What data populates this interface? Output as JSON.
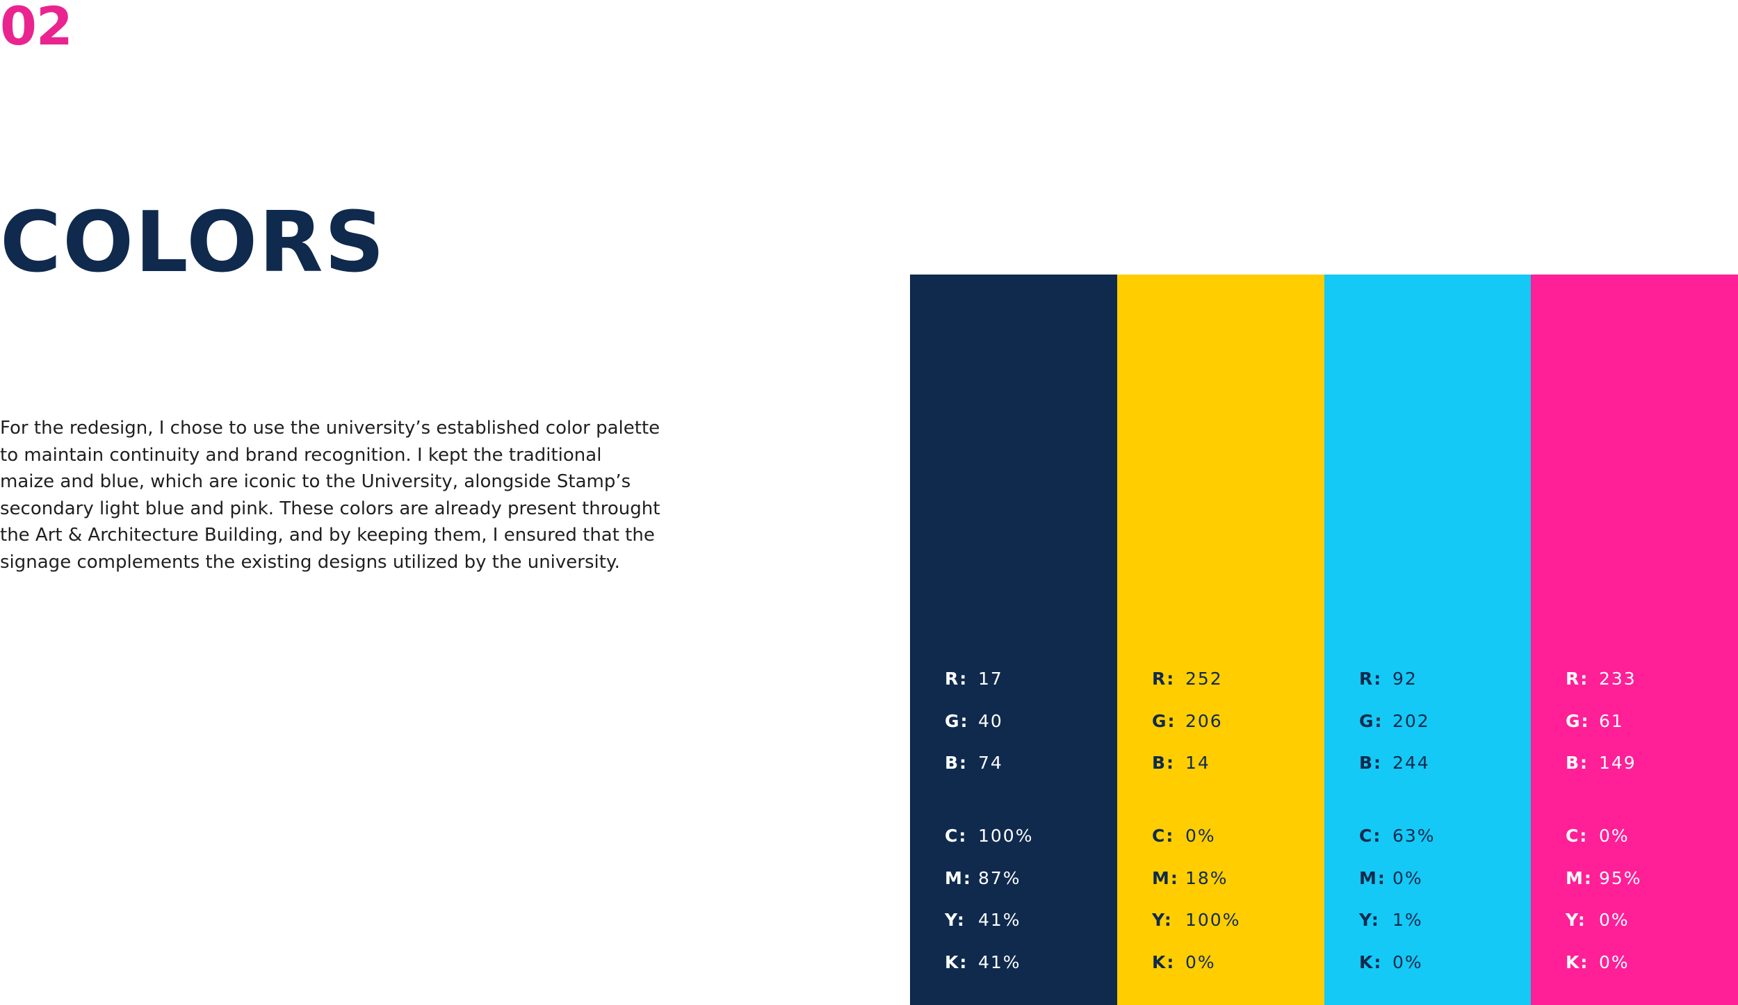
{
  "section_number": "02",
  "title": "COLORS",
  "description_lines": [
    "For the redesign, I chose to use the university’s established color palette",
    "to maintain continuity and brand recognition. I kept the traditional",
    "maize and blue, which are iconic to the University, alongside Stamp’s",
    "secondary light blue and pink. These colors are already present throught",
    "the Art & Architecture Building, and by keeping them, I ensured that the",
    "signage complements the existing designs utilized by the university."
  ],
  "colors_accent": {
    "section_number": "#e9248f",
    "title": "#0f2a4d"
  },
  "swatches": [
    {
      "color": "#0f2a4d",
      "text_color": "#ffffff",
      "rgb": [
        {
          "key": "R:",
          "value": "17"
        },
        {
          "key": "G:",
          "value": "40"
        },
        {
          "key": "B:",
          "value": "74"
        }
      ],
      "cmyk": [
        {
          "key": "C:",
          "value": "100%"
        },
        {
          "key": "M:",
          "value": "87%"
        },
        {
          "key": "Y:",
          "value": "41%"
        },
        {
          "key": "K:",
          "value": "41%"
        }
      ]
    },
    {
      "color": "#ffcd00",
      "text_color": "#0f2a4d",
      "rgb": [
        {
          "key": "R:",
          "value": "252"
        },
        {
          "key": "G:",
          "value": "206"
        },
        {
          "key": "B:",
          "value": "14"
        }
      ],
      "cmyk": [
        {
          "key": "C:",
          "value": "0%"
        },
        {
          "key": "M:",
          "value": "18%"
        },
        {
          "key": "Y:",
          "value": "100%"
        },
        {
          "key": "K:",
          "value": "0%"
        }
      ]
    },
    {
      "color": "#14c9f5",
      "text_color": "#0f2a4d",
      "rgb": [
        {
          "key": "R:",
          "value": "92"
        },
        {
          "key": "G:",
          "value": "202"
        },
        {
          "key": "B:",
          "value": "244"
        }
      ],
      "cmyk": [
        {
          "key": "C:",
          "value": "63%"
        },
        {
          "key": "M:",
          "value": "0%"
        },
        {
          "key": "Y:",
          "value": "1%"
        },
        {
          "key": "K:",
          "value": "0%"
        }
      ]
    },
    {
      "color": "#ff1f97",
      "text_color": "#ffffff",
      "rgb": [
        {
          "key": "R:",
          "value": "233"
        },
        {
          "key": "G:",
          "value": "61"
        },
        {
          "key": "B:",
          "value": "149"
        }
      ],
      "cmyk": [
        {
          "key": "C:",
          "value": "0%"
        },
        {
          "key": "M:",
          "value": "95%"
        },
        {
          "key": "Y:",
          "value": "0%"
        },
        {
          "key": "K:",
          "value": "0%"
        }
      ]
    }
  ]
}
